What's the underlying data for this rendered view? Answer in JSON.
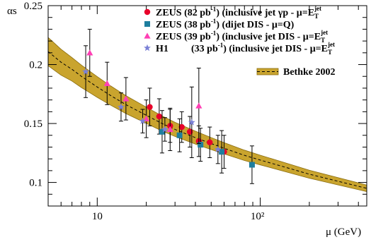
{
  "chart_data": {
    "type": "scatter",
    "title": "",
    "xlabel": "μ (GeV)",
    "ylabel": "αs",
    "xscale": "log",
    "xlim": [
      5,
      450
    ],
    "ylim": [
      0.08,
      0.25
    ],
    "yticks": [
      "0.1",
      "0.15",
      "0.2",
      "0.25"
    ],
    "xticks": [
      "10",
      "10²"
    ],
    "legend_position": "top-right",
    "colors": {
      "band": "#c9a42e",
      "band_edge": "#8a6d10",
      "zeus_gp": "#e8002a",
      "zeus_dijet": "#1e7e9e",
      "zeus_dis": "#ff3fb4",
      "h1": "#7a80d6"
    },
    "band": {
      "name": "Bethke 2002",
      "x": [
        5,
        6,
        7,
        8,
        10,
        12,
        15,
        20,
        25,
        30,
        40,
        50,
        60,
        80,
        100,
        150,
        200,
        300,
        450
      ],
      "center": [
        0.211,
        0.202,
        0.196,
        0.19,
        0.181,
        0.174,
        0.166,
        0.157,
        0.15,
        0.145,
        0.138,
        0.133,
        0.129,
        0.123,
        0.119,
        0.112,
        0.107,
        0.101,
        0.095
      ],
      "halfwidth": [
        0.012,
        0.011,
        0.01,
        0.0095,
        0.0088,
        0.0082,
        0.0076,
        0.0069,
        0.0064,
        0.006,
        0.0055,
        0.0051,
        0.0048,
        0.0044,
        0.0041,
        0.0037,
        0.0034,
        0.0031,
        0.0028
      ]
    },
    "series": [
      {
        "name": "ZEUS (82 pb⁻¹) (inclusive jet γp - μ=E_T^jet)",
        "label_main": "ZEUS (82 pb",
        "label_sup": "-1",
        "label_rest": ") (inclusive jet γp - μ=E",
        "label_sub": "T",
        "label_sup2": "jet",
        "marker": "circle",
        "points": [
          {
            "x": 21,
            "y": 0.164,
            "err": 0.016
          },
          {
            "x": 24,
            "y": 0.156,
            "err": 0.015
          },
          {
            "x": 28,
            "y": 0.148,
            "err": 0.014
          },
          {
            "x": 33,
            "y": 0.147,
            "err": 0.013
          },
          {
            "x": 37,
            "y": 0.143,
            "err": 0.013
          },
          {
            "x": 42,
            "y": 0.135,
            "err": 0.013
          },
          {
            "x": 49,
            "y": 0.134,
            "err": 0.013
          },
          {
            "x": 60,
            "y": 0.126,
            "err": 0.014
          }
        ]
      },
      {
        "name": "ZEUS (38 pb⁻¹) (dijet DIS - μ=Q)",
        "label_main": "ZEUS (38 pb",
        "label_sup": "-1",
        "label_rest": ") (dijet DIS - μ=Q)",
        "label_sub": "",
        "label_sup2": "",
        "marker": "square",
        "points": [
          {
            "x": 25,
            "y": 0.143,
            "err": 0.018
          },
          {
            "x": 32,
            "y": 0.14,
            "err": 0.014
          },
          {
            "x": 43,
            "y": 0.132,
            "err": 0.014
          },
          {
            "x": 58,
            "y": 0.126,
            "err": 0.018
          },
          {
            "x": 89,
            "y": 0.115,
            "err": 0.016
          }
        ]
      },
      {
        "name": "ZEUS (39 pb⁻¹) (inclusive jet DIS - μ=E_T^jet)",
        "label_main": "ZEUS (39 pb",
        "label_sup": "-1",
        "label_rest": ") (inclusive jet DIS - μ=E",
        "label_sub": "T",
        "label_sup2": "jet",
        "marker": "triangle",
        "points": [
          {
            "x": 9,
            "y": 0.21,
            "err": 0.02
          },
          {
            "x": 11.5,
            "y": 0.184,
            "err": 0.018
          },
          {
            "x": 15,
            "y": 0.171,
            "err": 0.018
          },
          {
            "x": 20,
            "y": 0.154,
            "err": 0.016
          },
          {
            "x": 28,
            "y": 0.145,
            "err": 0.018
          },
          {
            "x": 42,
            "y": 0.165,
            "err": 0.032
          }
        ]
      },
      {
        "name": "H1 (33 pb⁻¹) (inclusive jet DIS - μ=E_T^jet)",
        "label_main": "H1",
        "label_gap": "(33 pb",
        "label_sup": "-1",
        "label_rest": ") (inclusive jet DIS - μ=E",
        "label_sub": "T",
        "label_sup2": "jet",
        "marker": "star",
        "points": [
          {
            "x": 8.5,
            "y": 0.194,
            "err": 0.022
          },
          {
            "x": 14,
            "y": 0.164,
            "err": 0.012
          },
          {
            "x": 19,
            "y": 0.152,
            "err": 0.01
          },
          {
            "x": 26,
            "y": 0.145,
            "err": 0.01
          },
          {
            "x": 38,
            "y": 0.151,
            "err": 0.03
          },
          {
            "x": 55,
            "y": 0.128,
            "err": 0.012
          }
        ]
      }
    ]
  }
}
